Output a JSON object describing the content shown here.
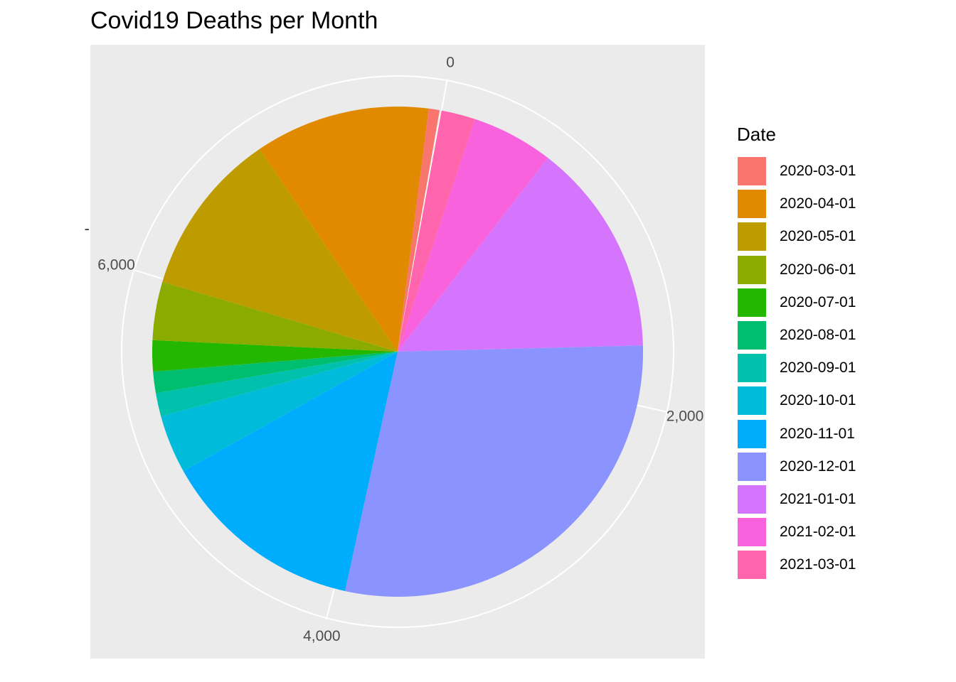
{
  "chart_data": {
    "type": "pie",
    "title": "Covid19 Deaths per Month",
    "xlabel": "",
    "ylabel": "",
    "y_axis_tick_label": "-",
    "legend_title": "Date",
    "legend_position": "right",
    "background": "#EBEBEB",
    "grid": true,
    "angle_axis": {
      "range": [
        0,
        7800
      ],
      "ticks": [
        0,
        2000,
        4000,
        6000
      ],
      "tick_labels": [
        "0",
        "2,000",
        "4,000",
        "6,000"
      ]
    },
    "categories": [
      "2020-03-01",
      "2020-04-01",
      "2020-05-01",
      "2020-06-01",
      "2020-07-01",
      "2020-08-01",
      "2020-09-01",
      "2020-10-01",
      "2020-11-01",
      "2020-12-01",
      "2021-01-01",
      "2021-02-01",
      "2021-03-01"
    ],
    "values": [
      55,
      900,
      850,
      300,
      160,
      110,
      120,
      300,
      1050,
      2250,
      1100,
      420,
      175
    ],
    "colors": [
      "#F8766D",
      "#E18A00",
      "#BE9C00",
      "#8CAB00",
      "#24B700",
      "#00BE70",
      "#00C1AB",
      "#00BBDA",
      "#00ACFC",
      "#8B93FF",
      "#D575FE",
      "#F962DD",
      "#FF65AC"
    ],
    "stack_order": [
      "2021-03-01",
      "2021-02-01",
      "2021-01-01",
      "2020-12-01",
      "2020-11-01",
      "2020-10-01",
      "2020-09-01",
      "2020-08-01",
      "2020-07-01",
      "2020-06-01",
      "2020-05-01",
      "2020-04-01",
      "2020-03-01"
    ]
  }
}
